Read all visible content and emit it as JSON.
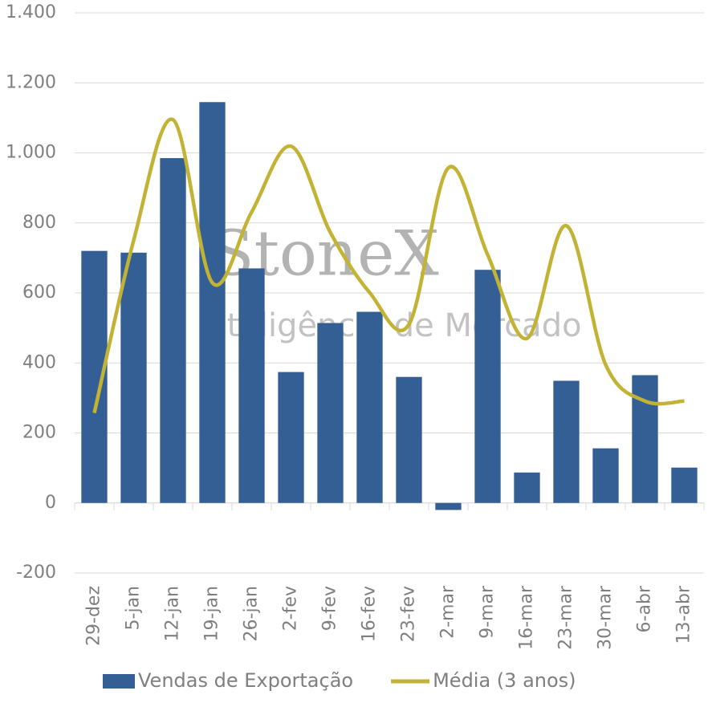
{
  "chart_data": {
    "type": "bar_line",
    "watermark": {
      "brand": "StoneX",
      "tagline": "Inteligência de Mercado"
    },
    "categories": [
      "29-dez",
      "5-jan",
      "12-jan",
      "19-jan",
      "26-jan",
      "2-fev",
      "9-fev",
      "16-fev",
      "23-fev",
      "2-mar",
      "9-mar",
      "16-mar",
      "23-mar",
      "30-mar",
      "6-abr",
      "13-abr"
    ],
    "series": [
      {
        "name": "Vendas de Exportação",
        "type": "bar",
        "color": "#335f95",
        "values": [
          720,
          715,
          985,
          1145,
          670,
          374,
          514,
          546,
          360,
          -20,
          666,
          87,
          349,
          156,
          365,
          101
        ]
      },
      {
        "name": "Média (3 anos)",
        "type": "line",
        "color": "#c3b335",
        "values": [
          257,
          750,
          1095,
          629,
          831,
          1019,
          773,
          601,
          510,
          957,
          709,
          470,
          792,
          395,
          291,
          291
        ]
      }
    ],
    "ylim": [
      -200,
      1400
    ],
    "yticks": [
      -200,
      0,
      200,
      400,
      600,
      800,
      {
        "value": 1000,
        "label": "1.000"
      },
      {
        "value": 1200,
        "label": "1.200"
      },
      {
        "value": 1400,
        "label": "1.400"
      }
    ],
    "grid": true,
    "legend": "bottom"
  }
}
